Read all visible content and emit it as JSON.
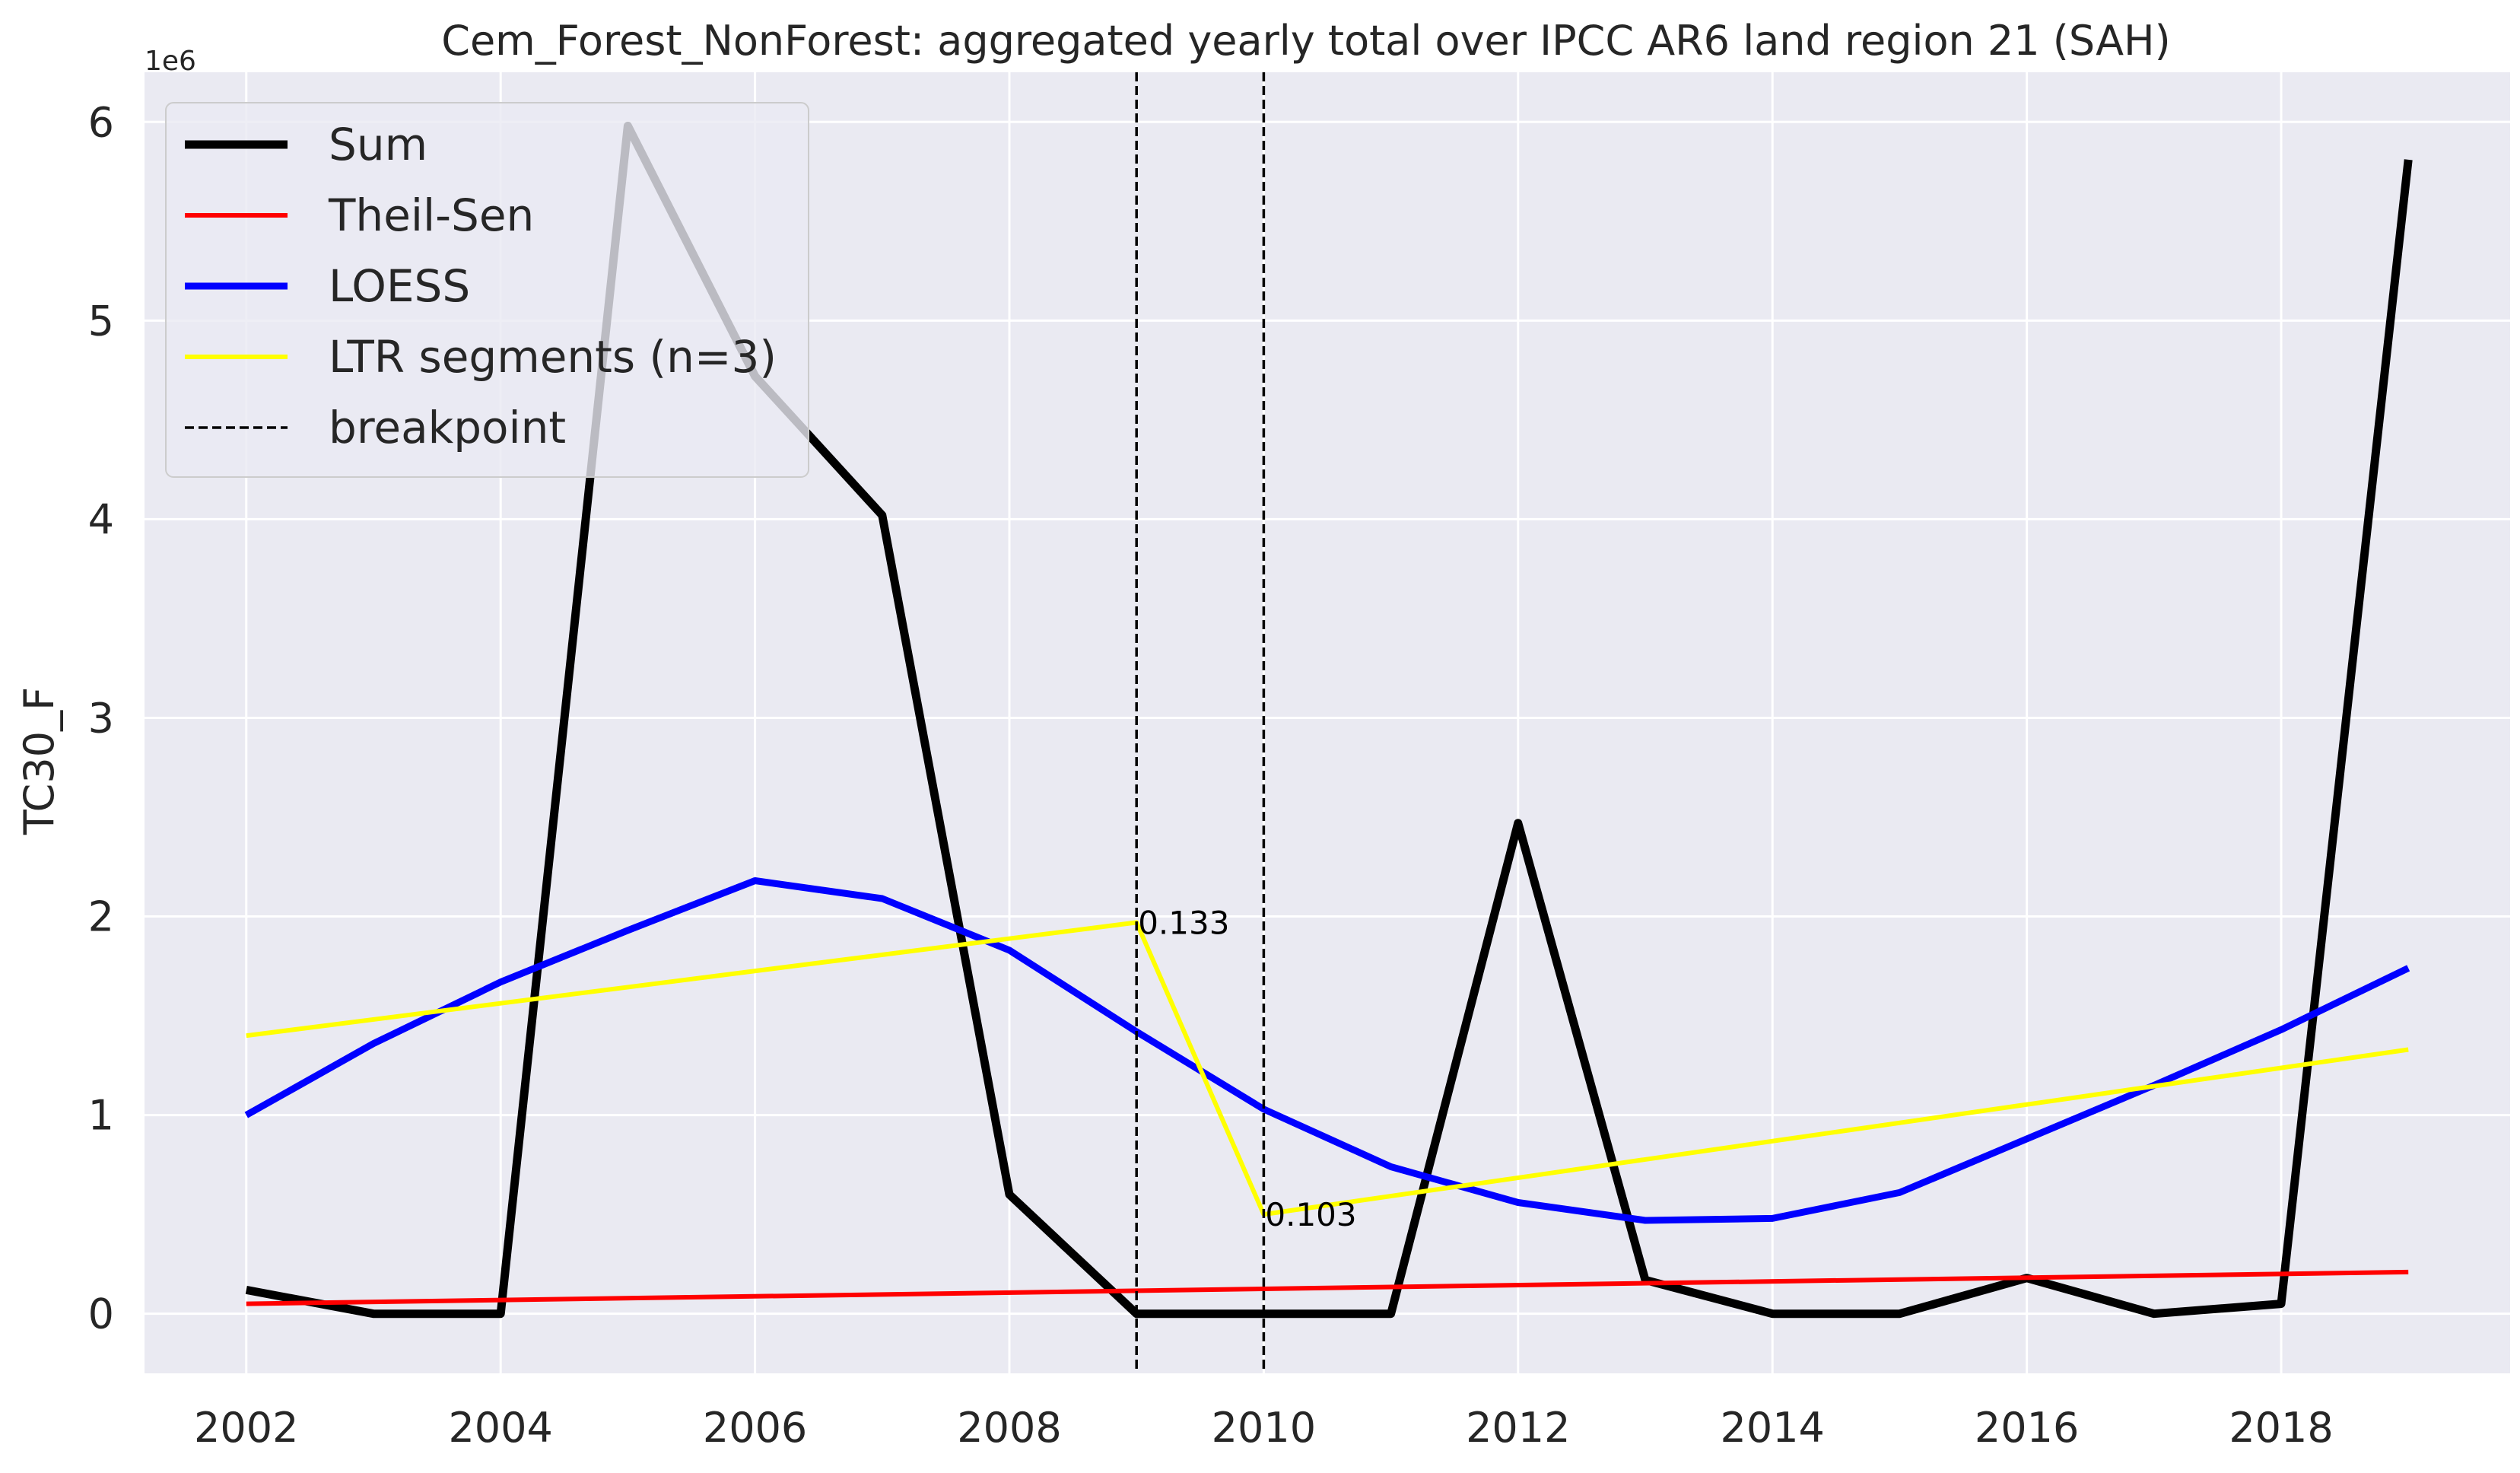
{
  "chart_data": {
    "type": "line",
    "title": "Cem_Forest_NonForest: aggregated yearly total over IPCC AR6 land region 21 (SAH)",
    "xlabel": "",
    "ylabel": "TC30_F",
    "y_offset_label": "1e6",
    "xlim": [
      2001.2,
      2019.8
    ],
    "ylim": [
      -0.3,
      6.25
    ],
    "xticks": [
      2002,
      2004,
      2006,
      2008,
      2010,
      2012,
      2014,
      2016,
      2018
    ],
    "yticks": [
      0,
      1,
      2,
      3,
      4,
      5,
      6
    ],
    "grid": true,
    "legend_position": "top-left",
    "colors": {
      "background": "#eaeaf2",
      "grid": "#ffffff",
      "sum": "#000000",
      "theil_sen": "#ff0000",
      "loess": "#0000ff",
      "ltr": "#ffff00",
      "breakpoint": "#000000"
    },
    "series": [
      {
        "name": "Sum",
        "key": "sum",
        "x": [
          2002,
          2003,
          2004,
          2005,
          2006,
          2007,
          2008,
          2009,
          2010,
          2011,
          2012,
          2013,
          2014,
          2015,
          2016,
          2017,
          2018,
          2019
        ],
        "y": [
          0.12,
          0.0,
          0.0,
          5.98,
          4.72,
          4.02,
          0.6,
          0.0,
          0.0,
          0.0,
          2.47,
          0.17,
          0.0,
          0.0,
          0.18,
          0.0,
          0.05,
          5.81
        ]
      },
      {
        "name": "Theil-Sen",
        "key": "theil_sen",
        "x": [
          2002,
          2019
        ],
        "y": [
          0.05,
          0.21
        ]
      },
      {
        "name": "LOESS",
        "key": "loess",
        "x": [
          2002,
          2003,
          2004,
          2005,
          2006,
          2007,
          2008,
          2009,
          2010,
          2011,
          2012,
          2013,
          2014,
          2015,
          2016,
          2017,
          2018,
          2019
        ],
        "y": [
          1.0,
          1.36,
          1.67,
          1.93,
          2.18,
          2.09,
          1.83,
          1.42,
          1.03,
          0.74,
          0.56,
          0.47,
          0.48,
          0.61,
          0.88,
          1.15,
          1.43,
          1.74
        ]
      },
      {
        "name": "LTR segments (n=3)",
        "key": "ltr",
        "x": [
          2002,
          2009,
          2010,
          2019
        ],
        "y": [
          1.4,
          1.97,
          0.5,
          1.33
        ]
      }
    ],
    "breakpoints": {
      "name": "breakpoint",
      "x": [
        2009,
        2010
      ]
    },
    "annotations": [
      {
        "text": "0.133",
        "x": 2009,
        "y": 1.97
      },
      {
        "text": "0.103",
        "x": 2010,
        "y": 0.5
      }
    ]
  }
}
